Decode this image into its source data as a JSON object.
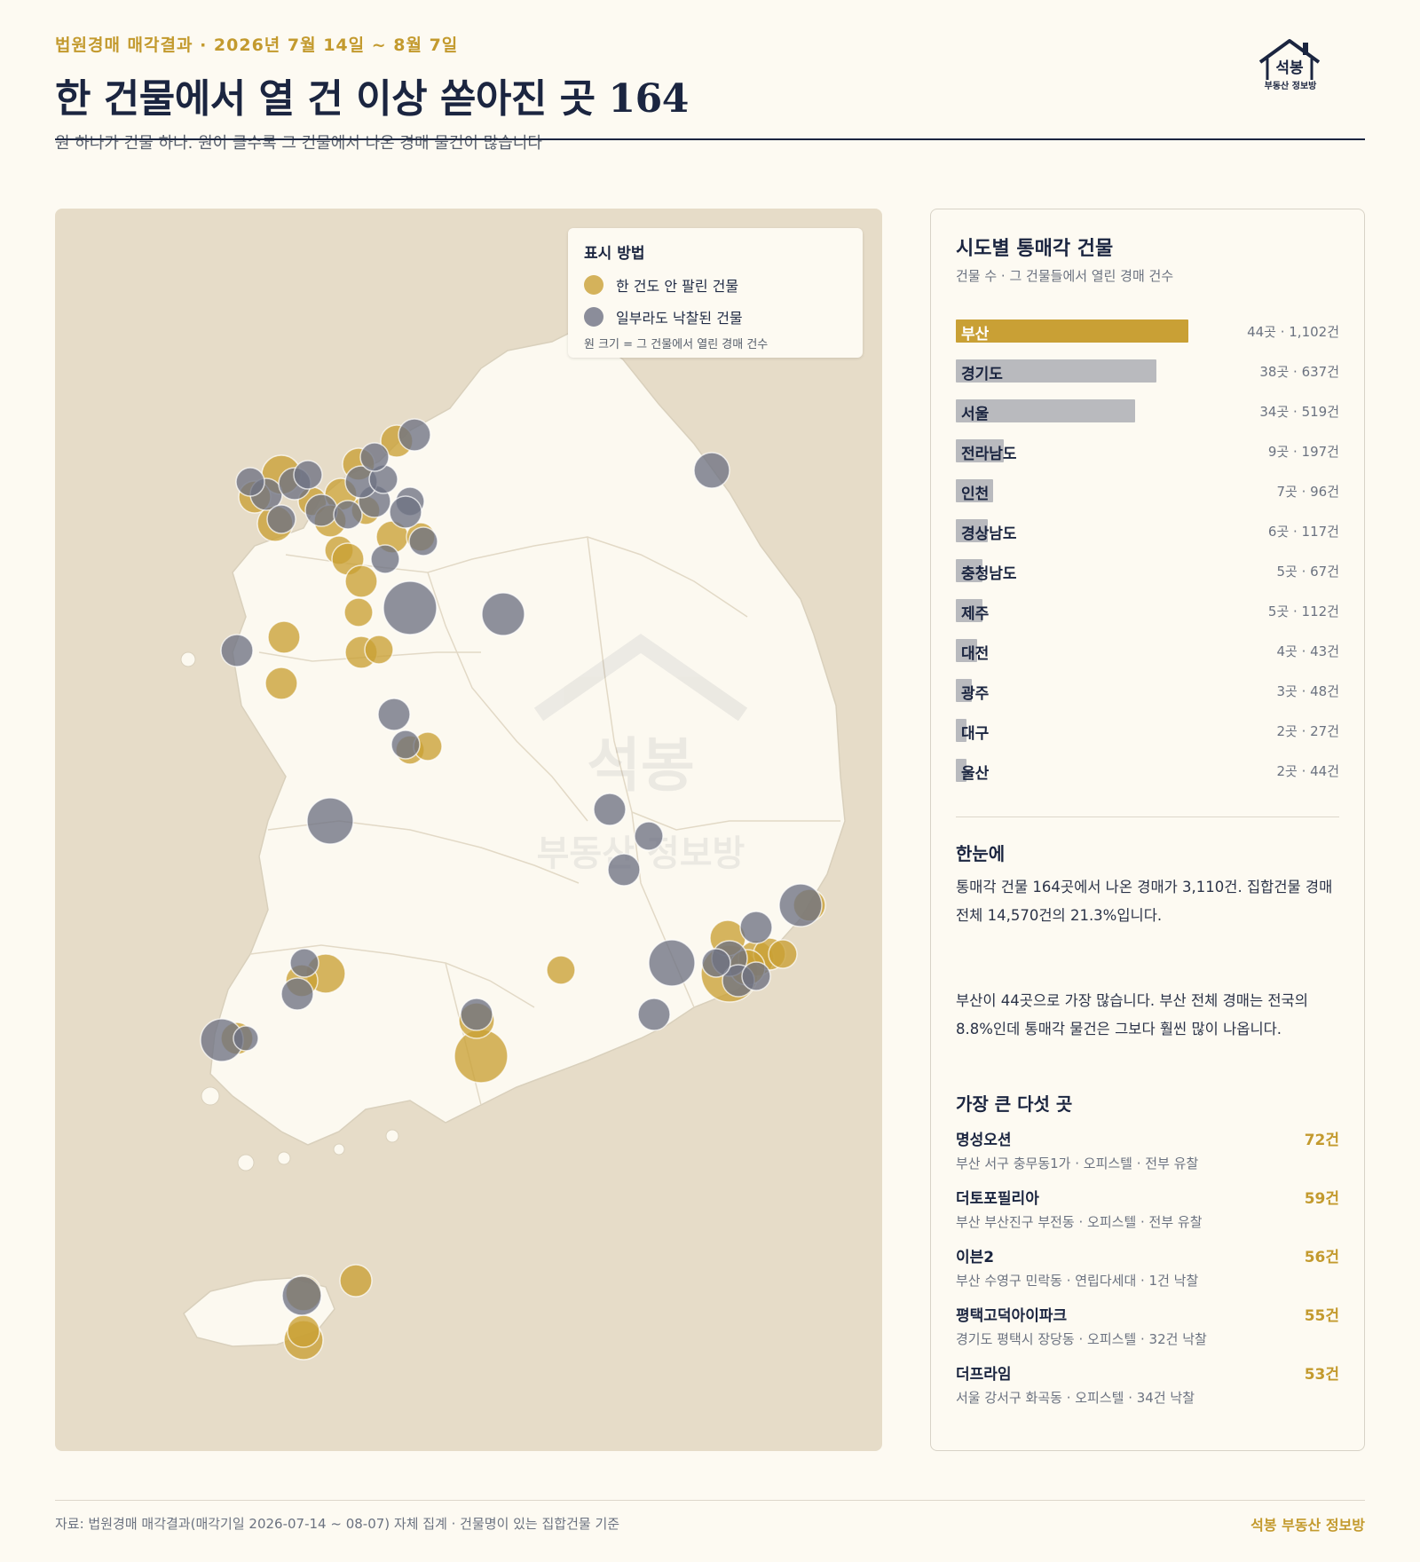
{
  "header": {
    "kicker": "법원경매 매각결과 · 2026년 7월 14일 ~ 8월 7일",
    "title": "한 건물에서 열 건 이상 쏟아진 곳 164",
    "subtitle": "원 하나가 건물 하나. 원이 클수록 그 건물에서 나온 경매 물건이 많습니다"
  },
  "logo": {
    "main": "석봉",
    "sub": "부동산 정보방"
  },
  "colors": {
    "unsold": "#c9a035",
    "partly_sold": "#6e7283",
    "accent": "#c39a2e",
    "navy": "#1b2540",
    "bar_gray": "#b9babe"
  },
  "legend": {
    "title": "표시 방법",
    "unsold_label": "한 건도 안 팔린 건물",
    "partly_label": "일부라도 낙찰된 건물",
    "note": "원 크기 = 그 건물에서 열린 경매 건수"
  },
  "watermark": {
    "line1": "석봉",
    "line2": "부동산 정보방"
  },
  "side": {
    "title": "시도별 통매각 건물",
    "subtitle": "건물 수 · 그 건물들에서 열린 경매 건수",
    "regions": [
      {
        "name": "부산",
        "buildings": 44,
        "cases": 1102,
        "value": "44곳 · 1,102건",
        "highlight": true
      },
      {
        "name": "경기도",
        "buildings": 38,
        "cases": 637,
        "value": "38곳 · 637건"
      },
      {
        "name": "서울",
        "buildings": 34,
        "cases": 519,
        "value": "34곳 · 519건"
      },
      {
        "name": "전라남도",
        "buildings": 9,
        "cases": 197,
        "value": "9곳 · 197건"
      },
      {
        "name": "인천",
        "buildings": 7,
        "cases": 96,
        "value": "7곳 · 96건"
      },
      {
        "name": "경상남도",
        "buildings": 6,
        "cases": 117,
        "value": "6곳 · 117건"
      },
      {
        "name": "충청남도",
        "buildings": 5,
        "cases": 67,
        "value": "5곳 · 67건"
      },
      {
        "name": "제주",
        "buildings": 5,
        "cases": 112,
        "value": "5곳 · 112건"
      },
      {
        "name": "대전",
        "buildings": 4,
        "cases": 43,
        "value": "4곳 · 43건"
      },
      {
        "name": "광주",
        "buildings": 3,
        "cases": 48,
        "value": "3곳 · 48건"
      },
      {
        "name": "대구",
        "buildings": 2,
        "cases": 27,
        "value": "2곳 · 27건"
      },
      {
        "name": "울산",
        "buildings": 2,
        "cases": 44,
        "value": "2곳 · 44건"
      }
    ],
    "summary_title": "한눈에",
    "summary_p1": "통매각 건물 164곳에서 나온 경매가 3,110건. 집합건물 경매 전체 14,570건의 21.3%입니다.",
    "summary_p2": "부산이 44곳으로 가장 많습니다. 부산 전체 경매는 전국의 8.8%인데 통매각 물건은 그보다 훨씬 많이 나옵니다.",
    "top5_title": "가장 큰 다섯 곳",
    "top5": [
      {
        "name": "명성오션",
        "count": "72건",
        "detail": "부산 서구 충무동1가 · 오피스텔 · 전부 유찰"
      },
      {
        "name": "더토포필리아",
        "count": "59건",
        "detail": "부산 부산진구 부전동 · 오피스텔 · 전부 유찰"
      },
      {
        "name": "이븐2",
        "count": "56건",
        "detail": "부산 수영구 민락동 · 연립다세대 · 1건 낙찰"
      },
      {
        "name": "평택고덕아이파크",
        "count": "55건",
        "detail": "경기도 평택시 장당동 · 오피스텔 · 32건 낙찰"
      },
      {
        "name": "더프라임",
        "count": "53건",
        "detail": "서울 강서구 화곡동 · 오피스텔 · 34건 낙찰"
      }
    ]
  },
  "footer": {
    "source": "자료: 법원경매 매각결과(매각기일 2026-07-14 ~ 08-07) 자체 집계 · 건물명이 있는 집합건물 기준",
    "brand": "석봉 부동산 정보방"
  }
}
